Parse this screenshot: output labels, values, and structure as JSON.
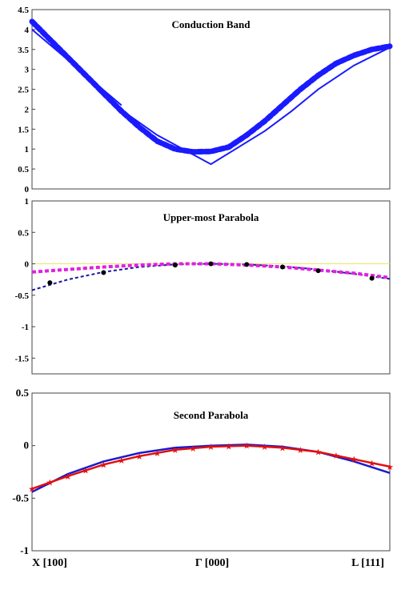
{
  "chart_data": [
    {
      "type": "line",
      "title": "Conduction Band",
      "ylim": [
        0,
        4.5
      ],
      "y_ticks": [
        "0",
        "0.5",
        "1",
        "1.5",
        "2",
        "2.5",
        "3",
        "3.5",
        "4",
        "4.5"
      ],
      "series": [
        {
          "style": "solid",
          "color": "#1a1aff",
          "x": [
            -1,
            -0.5,
            -0.49,
            -0.3,
            0,
            0.3,
            0.45,
            0.6,
            0.8,
            1
          ],
          "values": [
            4.0,
            2.1,
            1.95,
            1.35,
            0.62,
            1.45,
            1.95,
            2.5,
            3.1,
            3.55
          ]
        },
        {
          "style": "dotted-thick",
          "color": "#1a1aff",
          "x": [
            -1,
            -0.9,
            -0.8,
            -0.7,
            -0.6,
            -0.5,
            -0.4,
            -0.3,
            -0.2,
            -0.1,
            0,
            0.1,
            0.2,
            0.3,
            0.4,
            0.5,
            0.6,
            0.7,
            0.8,
            0.9,
            1
          ],
          "values": [
            4.2,
            3.75,
            3.3,
            2.85,
            2.4,
            1.95,
            1.55,
            1.2,
            1.0,
            0.93,
            0.94,
            1.05,
            1.35,
            1.7,
            2.1,
            2.5,
            2.85,
            3.15,
            3.35,
            3.5,
            3.58
          ]
        }
      ]
    },
    {
      "type": "line",
      "title": "Upper-most Parabola",
      "ylim": [
        -1.75,
        1
      ],
      "y_ticks": [
        "1",
        "0.5",
        "0",
        "-0.5",
        "-1",
        "-1.5"
      ],
      "series": [
        {
          "style": "dashed",
          "color": "#1a1a9a",
          "x": [
            -1,
            -0.8,
            -0.6,
            -0.4,
            -0.2,
            0,
            0.2,
            0.4,
            0.6,
            0.8,
            1
          ],
          "values": [
            -0.42,
            -0.25,
            -0.13,
            -0.05,
            -0.01,
            0,
            -0.01,
            -0.04,
            -0.09,
            -0.16,
            -0.24
          ]
        },
        {
          "style": "dashed-thick",
          "color": "#e020e0",
          "x": [
            -1,
            -0.8,
            -0.6,
            -0.4,
            -0.2,
            0,
            0.2,
            0.4,
            0.6,
            0.8,
            1
          ],
          "values": [
            -0.13,
            -0.09,
            -0.05,
            -0.02,
            0,
            0,
            -0.02,
            -0.05,
            -0.1,
            -0.15,
            -0.22
          ]
        },
        {
          "style": "markers",
          "color": "#000000",
          "x": [
            -0.9,
            -0.6,
            -0.2,
            0,
            0.2,
            0.4,
            0.6,
            0.9
          ],
          "values": [
            -0.3,
            -0.14,
            -0.02,
            0,
            -0.01,
            -0.05,
            -0.11,
            -0.23
          ]
        }
      ]
    },
    {
      "type": "line",
      "title": "Second Parabola",
      "ylim": [
        -1,
        0.5
      ],
      "y_ticks": [
        "0.5",
        "0",
        "-0.5",
        "-1"
      ],
      "series": [
        {
          "style": "solid",
          "color": "#1a1acc",
          "x": [
            -1,
            -0.8,
            -0.6,
            -0.4,
            -0.2,
            0,
            0.2,
            0.4,
            0.6,
            0.8,
            1
          ],
          "values": [
            -0.44,
            -0.27,
            -0.15,
            -0.07,
            -0.02,
            0,
            0.01,
            -0.01,
            -0.06,
            -0.15,
            -0.26
          ]
        },
        {
          "style": "solid-stars",
          "color": "#e01010",
          "x": [
            -1,
            -0.8,
            -0.6,
            -0.4,
            -0.2,
            0,
            0.2,
            0.4,
            0.6,
            0.8,
            1
          ],
          "values": [
            -0.41,
            -0.29,
            -0.18,
            -0.1,
            -0.04,
            -0.01,
            0,
            -0.02,
            -0.06,
            -0.13,
            -0.2
          ]
        }
      ]
    }
  ],
  "x_labels": {
    "left": "X  [100]",
    "center": "Γ [000]",
    "right": "L [111]"
  }
}
